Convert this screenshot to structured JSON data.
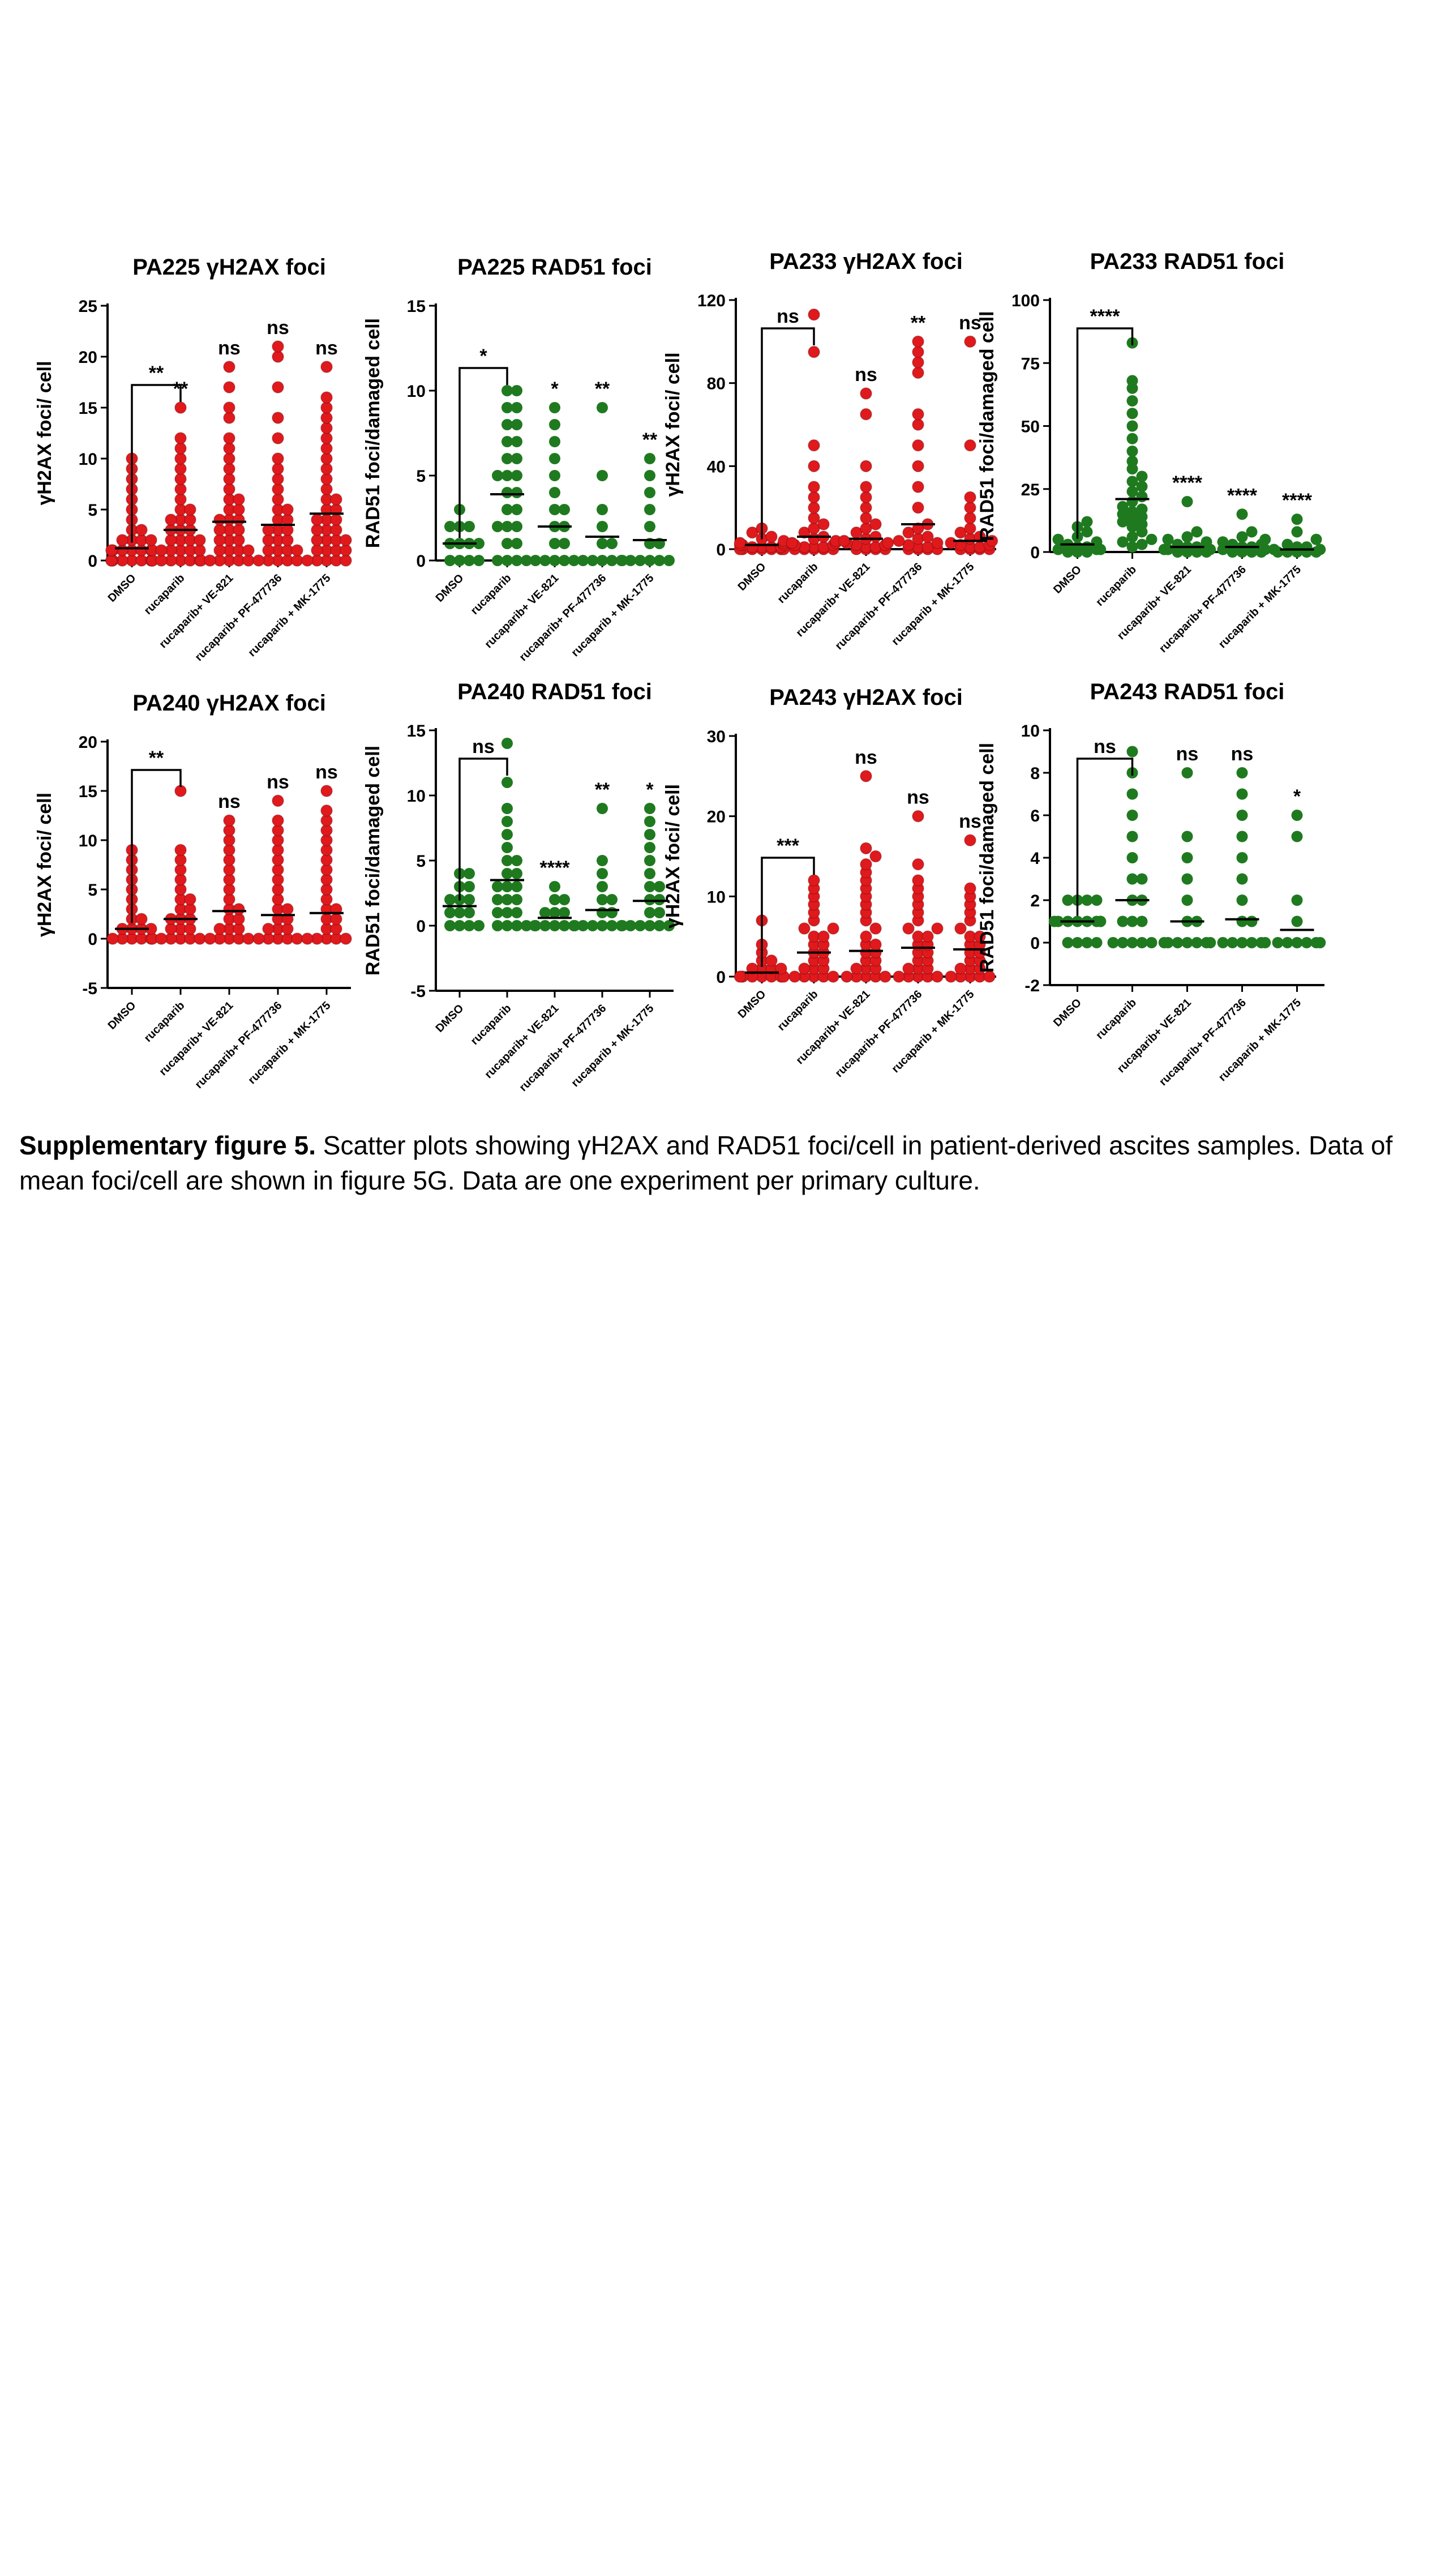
{
  "figure_caption": {
    "label": "Supplementary figure 5.",
    "text": "Scatter plots showing γH2AX and RAD51 foci/cell in patient-derived ascites samples. Data of mean foci/cell are shown in figure 5G. Data are one experiment per primary culture."
  },
  "colors": {
    "gh2ax": "#e0191d",
    "rad51": "#1f7a1f",
    "axis": "#000000"
  },
  "chart_data": [
    {
      "type": "scatter",
      "title": "PA225 γH2AX foci",
      "ylabel": "γH2AX foci/ cell",
      "ylim": [
        0,
        25
      ],
      "yticks": [
        0,
        5,
        10,
        15,
        20,
        25
      ],
      "color": "gh2ax",
      "categories": [
        "DMSO",
        "rucaparib",
        "rucaparib+ VE-821",
        "rucaparib+ PF-477736",
        "rucaparib + MK-1775"
      ],
      "means": [
        1.2,
        3.0,
        3.8,
        3.5,
        4.6
      ],
      "points": [
        [
          0,
          0,
          0,
          0,
          0,
          0,
          0,
          0,
          0,
          1,
          1,
          1,
          1,
          1,
          1,
          1,
          2,
          2,
          2,
          2,
          3,
          3,
          4,
          5,
          6,
          7,
          8,
          9,
          10
        ],
        [
          0,
          0,
          0,
          0,
          0,
          0,
          1,
          1,
          1,
          1,
          1,
          2,
          2,
          2,
          2,
          3,
          3,
          3,
          4,
          4,
          4,
          5,
          5,
          6,
          7,
          8,
          9,
          10,
          11,
          12,
          15
        ],
        [
          0,
          0,
          0,
          0,
          0,
          1,
          1,
          1,
          1,
          2,
          2,
          2,
          3,
          3,
          3,
          4,
          4,
          4,
          5,
          5,
          6,
          6,
          7,
          8,
          9,
          10,
          11,
          12,
          14,
          15,
          17,
          19
        ],
        [
          0,
          0,
          0,
          0,
          0,
          1,
          1,
          1,
          1,
          2,
          2,
          2,
          3,
          3,
          3,
          4,
          4,
          5,
          5,
          6,
          7,
          8,
          9,
          10,
          12,
          14,
          17,
          20,
          21
        ],
        [
          0,
          0,
          0,
          0,
          0,
          1,
          1,
          1,
          1,
          2,
          2,
          2,
          2,
          3,
          3,
          3,
          4,
          4,
          4,
          5,
          5,
          6,
          6,
          7,
          8,
          9,
          10,
          11,
          12,
          13,
          14,
          15,
          16,
          19
        ]
      ],
      "significance": [
        "",
        "**",
        "ns",
        "ns",
        "ns"
      ],
      "bracket": "**"
    },
    {
      "type": "scatter",
      "title": "PA225 RAD51 foci",
      "ylabel": "RAD51 foci/damaged cell",
      "ylim": [
        0,
        15
      ],
      "yticks": [
        0,
        5,
        10,
        15
      ],
      "color": "rad51",
      "categories": [
        "DMSO",
        "rucaparib",
        "rucaparib+ VE-821",
        "rucaparib+ PF-477736",
        "rucaparib + MK-1775"
      ],
      "means": [
        1.0,
        3.9,
        2.0,
        1.4,
        1.2
      ],
      "points": [
        [
          0,
          0,
          0,
          0,
          1,
          1,
          1,
          1,
          2,
          2,
          2,
          3
        ],
        [
          0,
          0,
          0,
          0,
          1,
          1,
          2,
          2,
          2,
          3,
          3,
          4,
          4,
          5,
          5,
          5,
          6,
          6,
          7,
          7,
          8,
          8,
          9,
          9,
          10,
          10
        ],
        [
          0,
          0,
          0,
          0,
          0,
          1,
          1,
          2,
          2,
          3,
          3,
          4,
          5,
          6,
          7,
          8,
          9
        ],
        [
          0,
          0,
          0,
          0,
          0,
          0,
          1,
          1,
          2,
          3,
          5,
          9
        ],
        [
          0,
          0,
          0,
          0,
          0,
          1,
          1,
          2,
          3,
          4,
          5,
          6
        ]
      ],
      "significance": [
        "",
        "",
        "*",
        "**",
        "**"
      ],
      "bracket": "*"
    },
    {
      "type": "scatter",
      "title": "PA233 γH2AX foci",
      "ylabel": "γH2AX foci/ cell",
      "ylim": [
        0,
        120
      ],
      "yticks": [
        0,
        40,
        80,
        120
      ],
      "color": "gh2ax",
      "categories": [
        "DMSO",
        "rucaparib",
        "rucaparib+ VE-821",
        "rucaparib+ PF-477736",
        "rucaparib + MK-1775"
      ],
      "means": [
        2,
        6,
        5,
        12,
        4
      ],
      "points": [
        [
          0,
          0,
          0,
          0,
          0,
          0,
          0,
          1,
          1,
          1,
          1,
          2,
          2,
          2,
          3,
          3,
          4,
          5,
          6,
          8,
          10
        ],
        [
          0,
          0,
          0,
          0,
          0,
          1,
          1,
          1,
          2,
          2,
          3,
          3,
          4,
          5,
          6,
          8,
          10,
          12,
          15,
          20,
          25,
          30,
          40,
          50,
          95,
          113
        ],
        [
          0,
          0,
          0,
          0,
          1,
          1,
          2,
          2,
          3,
          3,
          4,
          5,
          6,
          8,
          10,
          12,
          15,
          20,
          25,
          30,
          40,
          65,
          75
        ],
        [
          0,
          0,
          0,
          0,
          1,
          1,
          2,
          3,
          4,
          5,
          6,
          8,
          10,
          12,
          20,
          30,
          40,
          50,
          60,
          65,
          85,
          90,
          95,
          100
        ],
        [
          0,
          0,
          0,
          0,
          1,
          1,
          2,
          2,
          3,
          4,
          5,
          6,
          8,
          10,
          15,
          20,
          25,
          50,
          100
        ]
      ],
      "significance": [
        "",
        "",
        "ns",
        "**",
        "ns"
      ],
      "bracket": "ns"
    },
    {
      "type": "scatter",
      "title": "PA233 RAD51 foci",
      "ylabel": "RAD51 foci/damaged cell",
      "ylim": [
        0,
        100
      ],
      "yticks": [
        0,
        25,
        50,
        75,
        100
      ],
      "color": "rad51",
      "categories": [
        "DMSO",
        "rucaparib",
        "rucaparib+ VE-821",
        "rucaparib+ PF-477736",
        "rucaparib + MK-1775"
      ],
      "means": [
        3,
        21,
        2,
        2,
        1
      ],
      "points": [
        [
          0,
          0,
          0,
          1,
          1,
          1,
          2,
          2,
          3,
          4,
          5,
          6,
          8,
          10,
          12
        ],
        [
          2,
          3,
          4,
          5,
          6,
          8,
          10,
          11,
          12,
          13,
          14,
          15,
          16,
          17,
          18,
          20,
          22,
          24,
          26,
          28,
          30,
          33,
          36,
          40,
          45,
          50,
          55,
          60,
          65,
          68,
          83
        ],
        [
          0,
          0,
          0,
          0,
          1,
          1,
          1,
          2,
          2,
          3,
          4,
          5,
          6,
          8,
          20
        ],
        [
          0,
          0,
          0,
          0,
          1,
          1,
          2,
          2,
          3,
          3,
          4,
          5,
          6,
          8,
          15
        ],
        [
          0,
          0,
          0,
          0,
          0,
          1,
          1,
          2,
          2,
          3,
          5,
          8,
          13
        ]
      ],
      "significance": [
        "",
        "",
        "****",
        "****",
        "****"
      ],
      "bracket": "****"
    },
    {
      "type": "scatter",
      "title": "PA240 γH2AX foci",
      "ylabel": "γH2AX foci/ cell",
      "ylim": [
        -5,
        20
      ],
      "yticks": [
        -5,
        0,
        5,
        10,
        15,
        20
      ],
      "color": "gh2ax",
      "categories": [
        "DMSO",
        "rucaparib",
        "rucaparib+ VE-821",
        "rucaparib+ PF-477736",
        "rucaparib + MK-1775"
      ],
      "means": [
        1.0,
        2.0,
        2.8,
        2.4,
        2.6
      ],
      "points": [
        [
          0,
          0,
          0,
          0,
          0,
          0,
          1,
          1,
          1,
          1,
          2,
          2,
          3,
          4,
          5,
          6,
          7,
          8,
          9
        ],
        [
          0,
          0,
          0,
          0,
          0,
          1,
          1,
          1,
          2,
          2,
          2,
          3,
          3,
          4,
          4,
          5,
          6,
          7,
          8,
          9,
          15
        ],
        [
          0,
          0,
          0,
          0,
          0,
          1,
          1,
          1,
          2,
          2,
          3,
          3,
          4,
          5,
          6,
          7,
          8,
          9,
          10,
          11,
          12
        ],
        [
          0,
          0,
          0,
          0,
          0,
          1,
          1,
          1,
          2,
          2,
          3,
          3,
          4,
          5,
          6,
          7,
          8,
          9,
          10,
          11,
          12,
          14
        ],
        [
          0,
          0,
          0,
          0,
          0,
          1,
          1,
          2,
          2,
          3,
          3,
          4,
          5,
          6,
          7,
          8,
          9,
          10,
          11,
          12,
          13,
          15
        ]
      ],
      "significance": [
        "",
        "",
        "ns",
        "ns",
        "ns"
      ],
      "bracket": "**"
    },
    {
      "type": "scatter",
      "title": "PA240 RAD51 foci",
      "ylabel": "RAD51 foci/damaged cell",
      "ylim": [
        -5,
        15
      ],
      "yticks": [
        -5,
        0,
        5,
        10,
        15
      ],
      "color": "rad51",
      "categories": [
        "DMSO",
        "rucaparib",
        "rucaparib+ VE-821",
        "rucaparib+ PF-477736",
        "rucaparib + MK-1775"
      ],
      "means": [
        1.5,
        3.5,
        0.6,
        1.2,
        1.9
      ],
      "points": [
        [
          0,
          0,
          0,
          0,
          1,
          1,
          1,
          2,
          2,
          2,
          3,
          3,
          4,
          4
        ],
        [
          0,
          0,
          0,
          0,
          1,
          1,
          1,
          2,
          2,
          2,
          3,
          3,
          3,
          4,
          4,
          5,
          5,
          6,
          7,
          8,
          9,
          11,
          14
        ],
        [
          0,
          0,
          0,
          0,
          0,
          0,
          0,
          1,
          1,
          1,
          2,
          2,
          3
        ],
        [
          0,
          0,
          0,
          0,
          0,
          0,
          1,
          1,
          2,
          2,
          3,
          4,
          5,
          9
        ],
        [
          0,
          0,
          0,
          0,
          0,
          1,
          1,
          2,
          2,
          3,
          3,
          4,
          5,
          6,
          7,
          8,
          9
        ]
      ],
      "significance": [
        "",
        "",
        "****",
        "**",
        "*"
      ],
      "bracket": "ns"
    },
    {
      "type": "scatter",
      "title": "PA243 γH2AX foci",
      "ylabel": "γH2AX foci/ cell",
      "ylim": [
        0,
        30
      ],
      "yticks": [
        0,
        10,
        20,
        30
      ],
      "color": "gh2ax",
      "categories": [
        "DMSO",
        "rucaparib",
        "rucaparib+ VE-821",
        "rucaparib+ PF-477736",
        "rucaparib + MK-1775"
      ],
      "means": [
        0.5,
        3.0,
        3.2,
        3.6,
        3.4
      ],
      "points": [
        [
          0,
          0,
          0,
          0,
          0,
          0,
          0,
          1,
          1,
          1,
          1,
          2,
          2,
          3,
          4,
          7
        ],
        [
          0,
          0,
          0,
          0,
          0,
          1,
          1,
          1,
          2,
          2,
          3,
          3,
          4,
          4,
          5,
          5,
          6,
          6,
          7,
          8,
          9,
          10,
          11,
          12
        ],
        [
          0,
          0,
          0,
          0,
          0,
          1,
          1,
          1,
          2,
          2,
          3,
          3,
          4,
          4,
          5,
          6,
          7,
          8,
          9,
          10,
          11,
          12,
          13,
          14,
          15,
          16,
          25
        ],
        [
          0,
          0,
          0,
          0,
          0,
          1,
          1,
          1,
          2,
          2,
          3,
          3,
          4,
          4,
          5,
          5,
          6,
          6,
          7,
          8,
          9,
          10,
          11,
          12,
          14,
          20
        ],
        [
          0,
          0,
          0,
          0,
          0,
          1,
          1,
          1,
          2,
          2,
          3,
          3,
          4,
          4,
          5,
          5,
          6,
          7,
          8,
          9,
          10,
          11,
          17
        ]
      ],
      "significance": [
        "",
        "",
        "ns",
        "ns",
        "ns"
      ],
      "bracket": "***"
    },
    {
      "type": "scatter",
      "title": "PA243 RAD51 foci",
      "ylabel": "RAD51 foci/damaged cell",
      "ylim": [
        -2,
        10
      ],
      "yticks": [
        -2,
        0,
        2,
        4,
        6,
        8,
        10
      ],
      "color": "rad51",
      "categories": [
        "DMSO",
        "rucaparib",
        "rucaparib+ VE-821",
        "rucaparib+ PF-477736",
        "rucaparib + MK-1775"
      ],
      "means": [
        1.0,
        2.0,
        1.0,
        1.1,
        0.6
      ],
      "points": [
        [
          0,
          0,
          0,
          0,
          1,
          1,
          1,
          1,
          1,
          1,
          1,
          1,
          2,
          2,
          2,
          2
        ],
        [
          0,
          0,
          0,
          0,
          0,
          1,
          1,
          1,
          2,
          2,
          3,
          3,
          4,
          5,
          6,
          7,
          8,
          9
        ],
        [
          0,
          0,
          0,
          0,
          0,
          0,
          0,
          1,
          1,
          2,
          3,
          4,
          5,
          8
        ],
        [
          0,
          0,
          0,
          0,
          0,
          0,
          1,
          1,
          2,
          3,
          4,
          5,
          6,
          7,
          8
        ],
        [
          0,
          0,
          0,
          0,
          0,
          0,
          1,
          2,
          5,
          6
        ]
      ],
      "significance": [
        "",
        "",
        "ns",
        "ns",
        "*"
      ],
      "bracket": "ns"
    }
  ]
}
